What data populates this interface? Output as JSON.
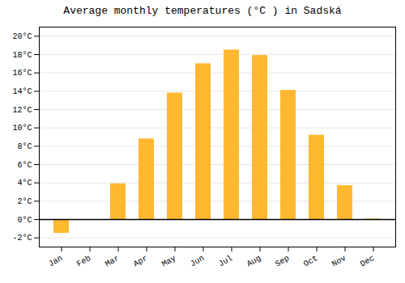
{
  "chart_data": {
    "type": "bar",
    "title": "Average monthly temperatures (°C ) in Sadská",
    "categories": [
      "Jan",
      "Feb",
      "Mar",
      "Apr",
      "May",
      "Jun",
      "Jul",
      "Aug",
      "Sep",
      "Oct",
      "Nov",
      "Dec"
    ],
    "values": [
      -1.5,
      0,
      3.9,
      8.8,
      13.8,
      17.0,
      18.5,
      17.9,
      14.1,
      9.2,
      3.7,
      0.05
    ],
    "color": "#FFB830",
    "ylim": [
      -3,
      21
    ],
    "yticks": [
      {
        "value": -2,
        "label": "-2°C"
      },
      {
        "value": 0,
        "label": "0°C"
      },
      {
        "value": 2,
        "label": "2°C"
      },
      {
        "value": 4,
        "label": "4°C"
      },
      {
        "value": 6,
        "label": "6°C"
      },
      {
        "value": 8,
        "label": "8°C"
      },
      {
        "value": 10,
        "label": "10°C"
      },
      {
        "value": 12,
        "label": "12°C"
      },
      {
        "value": 14,
        "label": "14°C"
      },
      {
        "value": 16,
        "label": "16°C"
      },
      {
        "value": 18,
        "label": "18°C"
      },
      {
        "value": 20,
        "label": "20°C"
      }
    ],
    "grid": true
  }
}
